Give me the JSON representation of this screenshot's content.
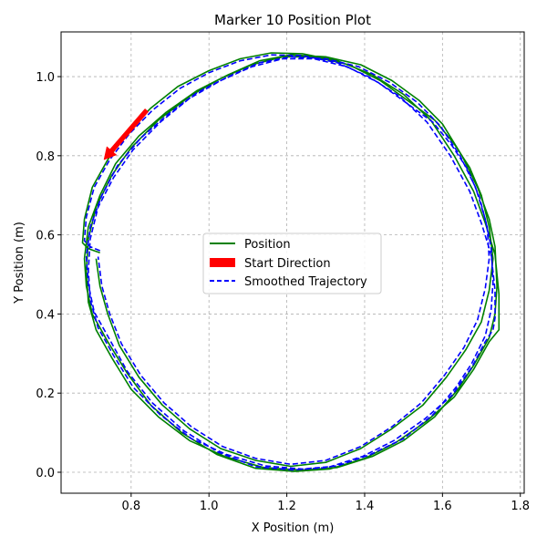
{
  "chart_data": {
    "type": "line",
    "title": "Marker 10 Position Plot",
    "xlabel": "X Position (m)",
    "ylabel": "Y Position (m)",
    "xlim": [
      0.62,
      1.81
    ],
    "ylim": [
      -0.053,
      1.113
    ],
    "xticks": [
      "0.8",
      "1.0",
      "1.2",
      "1.4",
      "1.6",
      "1.8"
    ],
    "yticks": [
      "0.0",
      "0.2",
      "0.4",
      "0.6",
      "0.8",
      "1.0"
    ],
    "grid": true,
    "legend_position": "center",
    "colors": {
      "position": "#008000",
      "direction": "#ff0000",
      "smoothed": "#0000ff"
    },
    "series": [
      {
        "name": "Position",
        "style": "solid",
        "x": [
          0.72,
          0.69,
          0.675,
          0.68,
          0.7,
          0.74,
          0.79,
          0.85,
          0.92,
          1.0,
          1.08,
          1.16,
          1.24,
          1.33,
          1.42,
          1.5,
          1.57,
          1.63,
          1.68,
          1.71,
          1.735,
          1.745,
          1.745,
          1.745,
          1.72,
          1.68,
          1.63,
          1.56,
          1.48,
          1.4,
          1.31,
          1.22,
          1.12,
          1.02,
          0.93,
          0.85,
          0.79,
          0.74,
          0.7,
          0.685,
          0.68,
          0.69,
          0.72,
          0.76,
          0.82,
          0.89,
          0.97,
          1.05,
          1.13,
          1.21,
          1.3,
          1.39,
          1.47,
          1.54,
          1.6,
          1.65,
          1.69,
          1.72,
          1.735,
          1.74,
          1.735,
          1.72,
          1.68,
          1.64,
          1.58,
          1.5,
          1.42,
          1.33,
          1.24,
          1.14,
          1.04,
          0.95,
          0.87,
          0.8,
          0.75,
          0.71,
          0.69,
          0.685,
          0.69,
          0.71,
          0.75,
          0.8,
          0.87,
          0.95,
          1.03,
          1.11,
          1.19,
          1.27,
          1.36,
          1.44,
          1.51,
          1.58,
          1.63,
          1.67,
          1.7,
          1.72,
          1.73,
          1.72,
          1.7,
          1.66,
          1.61,
          1.55,
          1.47,
          1.39,
          1.3,
          1.21,
          1.12,
          1.03,
          0.95,
          0.88,
          0.82,
          0.77,
          0.74,
          0.72,
          0.71
        ],
        "y": [
          0.555,
          0.565,
          0.58,
          0.64,
          0.72,
          0.79,
          0.86,
          0.92,
          0.975,
          1.015,
          1.045,
          1.06,
          1.058,
          1.04,
          1.005,
          0.955,
          0.89,
          0.8,
          0.71,
          0.63,
          0.55,
          0.45,
          0.38,
          0.36,
          0.33,
          0.26,
          0.19,
          0.13,
          0.075,
          0.035,
          0.008,
          0.002,
          0.01,
          0.045,
          0.1,
          0.17,
          0.25,
          0.33,
          0.4,
          0.47,
          0.54,
          0.62,
          0.7,
          0.78,
          0.85,
          0.91,
          0.965,
          1.005,
          1.04,
          1.055,
          1.05,
          1.03,
          0.99,
          0.94,
          0.88,
          0.8,
          0.72,
          0.64,
          0.57,
          0.47,
          0.4,
          0.34,
          0.27,
          0.21,
          0.14,
          0.08,
          0.04,
          0.012,
          0.005,
          0.012,
          0.04,
          0.08,
          0.14,
          0.21,
          0.29,
          0.36,
          0.43,
          0.51,
          0.59,
          0.67,
          0.75,
          0.82,
          0.89,
          0.95,
          0.995,
          1.03,
          1.05,
          1.05,
          1.03,
          0.99,
          0.94,
          0.89,
          0.83,
          0.77,
          0.7,
          0.62,
          0.54,
          0.46,
          0.38,
          0.31,
          0.24,
          0.17,
          0.11,
          0.06,
          0.025,
          0.015,
          0.03,
          0.06,
          0.11,
          0.17,
          0.24,
          0.32,
          0.4,
          0.47,
          0.54
        ]
      },
      {
        "name": "Smoothed Trajectory",
        "style": "dashed",
        "x": [
          0.72,
          0.695,
          0.68,
          0.685,
          0.705,
          0.745,
          0.795,
          0.855,
          0.925,
          1.0,
          1.08,
          1.16,
          1.24,
          1.33,
          1.41,
          1.49,
          1.56,
          1.62,
          1.67,
          1.7,
          1.725,
          1.735,
          1.735,
          1.73,
          1.71,
          1.675,
          1.625,
          1.555,
          1.475,
          1.395,
          1.305,
          1.215,
          1.12,
          1.025,
          0.935,
          0.855,
          0.79,
          0.745,
          0.705,
          0.69,
          0.685,
          0.695,
          0.725,
          0.765,
          0.825,
          0.895,
          0.97,
          1.05,
          1.13,
          1.21,
          1.3,
          1.385,
          1.465,
          1.535,
          1.595,
          1.645,
          1.685,
          1.71,
          1.725,
          1.73,
          1.725,
          1.71,
          1.675,
          1.635,
          1.575,
          1.5,
          1.415,
          1.33,
          1.24,
          1.145,
          1.045,
          0.955,
          0.875,
          0.805,
          0.755,
          0.715,
          0.695,
          0.69,
          0.695,
          0.715,
          0.755,
          0.805,
          0.875,
          0.95,
          1.03,
          1.11,
          1.19,
          1.27,
          1.355,
          1.435,
          1.505,
          1.575,
          1.625,
          1.665,
          1.695,
          1.715,
          1.72,
          1.71,
          1.69,
          1.655,
          1.605,
          1.545,
          1.47,
          1.39,
          1.3,
          1.21,
          1.12,
          1.035,
          0.955,
          0.885,
          0.825,
          0.775,
          0.745,
          0.725,
          0.715
        ],
        "y": [
          0.56,
          0.57,
          0.585,
          0.645,
          0.72,
          0.79,
          0.855,
          0.915,
          0.97,
          1.01,
          1.04,
          1.055,
          1.053,
          1.035,
          1.0,
          0.95,
          0.885,
          0.8,
          0.71,
          0.63,
          0.55,
          0.46,
          0.39,
          0.36,
          0.33,
          0.265,
          0.195,
          0.135,
          0.08,
          0.04,
          0.012,
          0.006,
          0.014,
          0.05,
          0.105,
          0.175,
          0.255,
          0.335,
          0.405,
          0.475,
          0.545,
          0.62,
          0.7,
          0.775,
          0.845,
          0.905,
          0.96,
          1.0,
          1.035,
          1.05,
          1.045,
          1.025,
          0.985,
          0.935,
          0.875,
          0.8,
          0.72,
          0.64,
          0.57,
          0.48,
          0.41,
          0.345,
          0.275,
          0.215,
          0.145,
          0.085,
          0.045,
          0.016,
          0.008,
          0.016,
          0.045,
          0.085,
          0.145,
          0.215,
          0.295,
          0.365,
          0.435,
          0.51,
          0.59,
          0.67,
          0.745,
          0.815,
          0.885,
          0.945,
          0.99,
          1.025,
          1.045,
          1.045,
          1.025,
          0.985,
          0.935,
          0.885,
          0.825,
          0.765,
          0.695,
          0.62,
          0.54,
          0.465,
          0.385,
          0.315,
          0.245,
          0.175,
          0.115,
          0.065,
          0.03,
          0.02,
          0.035,
          0.065,
          0.115,
          0.175,
          0.245,
          0.325,
          0.4,
          0.47,
          0.545
        ]
      },
      {
        "name": "Start Direction",
        "type": "arrow",
        "from": [
          0.84,
          0.915
        ],
        "to": [
          0.73,
          0.79
        ]
      }
    ]
  }
}
